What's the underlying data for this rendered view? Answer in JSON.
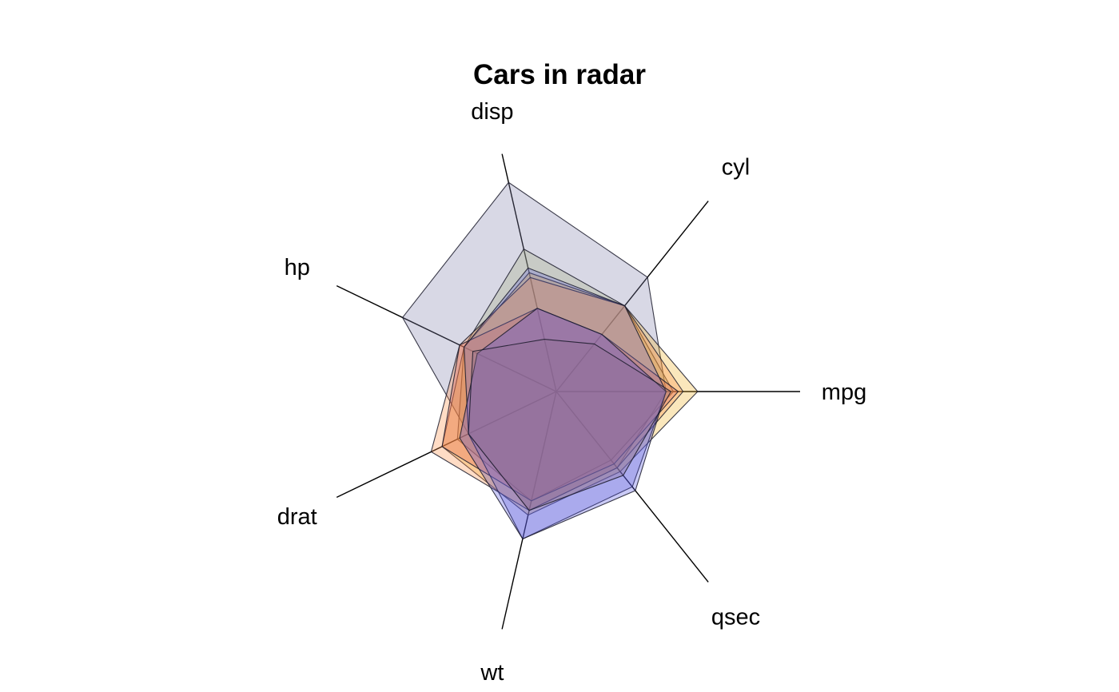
{
  "chart_data": {
    "type": "radar",
    "title": "Cars in radar",
    "axes": [
      "mpg",
      "cyl",
      "disp",
      "hp",
      "drat",
      "wt",
      "qsec"
    ],
    "scale": "each axis rescaled to [0, 1]",
    "series": [
      {
        "color": "#7f7faa",
        "values": [
          0.45,
          0.6,
          0.88,
          0.7,
          0.4,
          0.5,
          0.4
        ]
      },
      {
        "color": "#a3ad7e",
        "values": [
          0.48,
          0.45,
          0.6,
          0.42,
          0.45,
          0.46,
          0.36
        ]
      },
      {
        "color": "#f0b020",
        "values": [
          0.58,
          0.45,
          0.5,
          0.42,
          0.52,
          0.52,
          0.42
        ]
      },
      {
        "color": "#ff8c40",
        "values": [
          0.52,
          0.45,
          0.48,
          0.44,
          0.57,
          0.5,
          0.4
        ]
      },
      {
        "color": "#e06050",
        "values": [
          0.5,
          0.3,
          0.35,
          0.44,
          0.52,
          0.46,
          0.38
        ]
      },
      {
        "color": "#6a6ad8",
        "values": [
          0.45,
          0.45,
          0.52,
          0.42,
          0.4,
          0.62,
          0.5
        ]
      },
      {
        "color": "#5050e0",
        "values": [
          0.45,
          0.3,
          0.35,
          0.36,
          0.44,
          0.62,
          0.52
        ]
      },
      {
        "color": "#8a6a8a",
        "values": [
          0.47,
          0.25,
          0.22,
          0.38,
          0.4,
          0.5,
          0.44
        ]
      }
    ]
  }
}
